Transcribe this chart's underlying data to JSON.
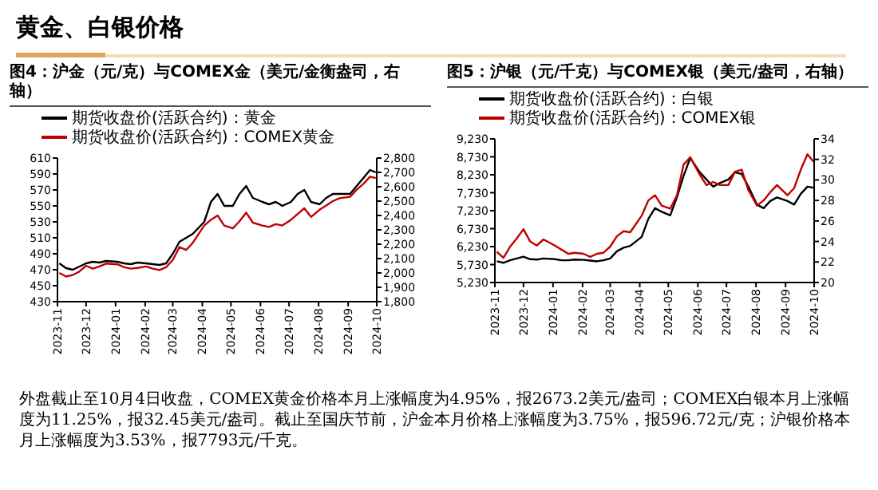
{
  "chart_data": [
    {
      "type": "line",
      "title": "图4：沪金（元/克）与COMEX金（美元/金衡盎司，右轴）",
      "legend": "top",
      "x": [
        "2023-11-03",
        "2023-11-10",
        "2023-11-17",
        "2023-11-24",
        "2023-12-01",
        "2023-12-08",
        "2023-12-15",
        "2023-12-22",
        "2024-01-03",
        "2024-01-10",
        "2024-01-17",
        "2024-01-24",
        "2024-02-02",
        "2024-02-09",
        "2024-02-16",
        "2024-02-23",
        "2024-03-01",
        "2024-03-08",
        "2024-03-15",
        "2024-03-22",
        "2024-04-03",
        "2024-04-10",
        "2024-04-17",
        "2024-04-24",
        "2024-05-03",
        "2024-05-10",
        "2024-05-17",
        "2024-05-24",
        "2024-06-03",
        "2024-06-10",
        "2024-06-17",
        "2024-06-24",
        "2024-07-03",
        "2024-07-10",
        "2024-07-17",
        "2024-07-24",
        "2024-08-02",
        "2024-08-09",
        "2024-08-16",
        "2024-08-23",
        "2024-09-03",
        "2024-09-10",
        "2024-09-17",
        "2024-09-24",
        "2024-09-30"
      ],
      "series": [
        {
          "name": "期货收盘价(活跃合约)：黄金",
          "color": "#000000",
          "values": [
            478,
            472,
            470,
            474,
            478,
            480,
            479,
            481,
            480,
            478,
            477,
            479,
            478,
            477,
            476,
            478,
            490,
            505,
            510,
            515,
            530,
            555,
            565,
            550,
            550,
            565,
            575,
            560,
            555,
            552,
            555,
            550,
            555,
            565,
            570,
            555,
            552,
            560,
            565,
            565,
            565,
            575,
            585,
            595,
            592
          ]
        },
        {
          "name": "期货收盘价(活跃合约)：COMEX黄金",
          "color": "#c00000",
          "axis": "y2",
          "values": [
            2000,
            1975,
            1985,
            2010,
            2050,
            2030,
            2045,
            2065,
            2060,
            2040,
            2030,
            2035,
            2045,
            2030,
            2020,
            2040,
            2090,
            2180,
            2160,
            2210,
            2330,
            2370,
            2400,
            2330,
            2310,
            2360,
            2420,
            2350,
            2330,
            2320,
            2340,
            2330,
            2370,
            2410,
            2450,
            2390,
            2440,
            2470,
            2500,
            2520,
            2530,
            2580,
            2620,
            2670,
            2660
          ]
        }
      ],
      "xlim": [
        "2023-11-01",
        "2024-10-01"
      ],
      "xticks": [
        "2023-11",
        "2023-12",
        "2024-01",
        "2024-02",
        "2024-03",
        "2024-04",
        "2024-05",
        "2024-06",
        "2024-07",
        "2024-08",
        "2024-09",
        "2024-10"
      ],
      "ylim": [
        430,
        610
      ],
      "yticks": [
        430,
        450,
        470,
        490,
        510,
        530,
        550,
        570,
        590,
        610
      ],
      "y2lim": [
        1800,
        2800
      ],
      "y2ticks": [
        {
          "value": 1800,
          "label": "1,800"
        },
        {
          "value": 1900,
          "label": "1,900"
        },
        {
          "value": 2000,
          "label": "2,000"
        },
        {
          "value": 2100,
          "label": "2,100"
        },
        {
          "value": 2200,
          "label": "2,200"
        },
        {
          "value": 2300,
          "label": "2,300"
        },
        {
          "value": 2400,
          "label": "2,400"
        },
        {
          "value": 2500,
          "label": "2,500"
        },
        {
          "value": 2600,
          "label": "2,600"
        },
        {
          "value": 2700,
          "label": "2,700"
        },
        {
          "value": 2800,
          "label": "2,800"
        }
      ]
    },
    {
      "type": "line",
      "title": "图5：沪银（元/千克）与COMEX银（美元/盎司，右轴）",
      "legend": "top",
      "x": [
        "2023-11-03",
        "2023-11-10",
        "2023-11-17",
        "2023-11-24",
        "2023-12-01",
        "2023-12-08",
        "2023-12-15",
        "2023-12-22",
        "2024-01-03",
        "2024-01-10",
        "2024-01-17",
        "2024-01-24",
        "2024-02-02",
        "2024-02-09",
        "2024-02-16",
        "2024-02-23",
        "2024-03-01",
        "2024-03-08",
        "2024-03-15",
        "2024-03-22",
        "2024-04-03",
        "2024-04-10",
        "2024-04-17",
        "2024-04-24",
        "2024-05-03",
        "2024-05-10",
        "2024-05-17",
        "2024-05-24",
        "2024-06-03",
        "2024-06-10",
        "2024-06-17",
        "2024-06-24",
        "2024-07-03",
        "2024-07-10",
        "2024-07-17",
        "2024-07-24",
        "2024-08-02",
        "2024-08-09",
        "2024-08-16",
        "2024-08-23",
        "2024-09-03",
        "2024-09-10",
        "2024-09-17",
        "2024-09-24",
        "2024-09-30"
      ],
      "series": [
        {
          "name": "期货收盘价(活跃合约)：白银",
          "color": "#000000",
          "values": [
            5820,
            5780,
            5850,
            5900,
            5950,
            5880,
            5870,
            5900,
            5880,
            5850,
            5850,
            5870,
            5860,
            5840,
            5820,
            5850,
            5900,
            6100,
            6200,
            6250,
            6500,
            7000,
            7300,
            7200,
            7100,
            7600,
            8200,
            8700,
            8300,
            8100,
            7900,
            8000,
            8100,
            8300,
            8250,
            7900,
            7400,
            7300,
            7500,
            7600,
            7500,
            7400,
            7700,
            7900,
            7870
          ]
        },
        {
          "name": "期货收盘价(活跃合约)：COMEX银",
          "color": "#c00000",
          "axis": "y2",
          "values": [
            23.0,
            22.4,
            23.5,
            24.3,
            25.2,
            24.0,
            23.6,
            24.2,
            23.6,
            23.2,
            22.8,
            22.9,
            22.8,
            22.5,
            22.8,
            22.9,
            23.5,
            24.5,
            25.0,
            24.9,
            26.5,
            28.0,
            28.5,
            27.5,
            27.2,
            28.5,
            31.5,
            32.2,
            30.5,
            29.5,
            29.8,
            29.5,
            29.5,
            30.8,
            31.0,
            29.0,
            27.5,
            28.0,
            28.8,
            29.5,
            28.5,
            29.2,
            31.0,
            32.5,
            31.8
          ]
        }
      ],
      "xlim": [
        "2023-11-01",
        "2024-10-01"
      ],
      "xticks": [
        "2023-11",
        "2023-12",
        "2024-01",
        "2024-02",
        "2024-03",
        "2024-04",
        "2024-05",
        "2024-06",
        "2024-07",
        "2024-08",
        "2024-09",
        "2024-10"
      ],
      "ylim": [
        5230,
        9230
      ],
      "yticks": [
        {
          "value": 5230,
          "label": "5,230"
        },
        {
          "value": 5730,
          "label": "5,730"
        },
        {
          "value": 6230,
          "label": "6,230"
        },
        {
          "value": 6730,
          "label": "6,730"
        },
        {
          "value": 7230,
          "label": "7,230"
        },
        {
          "value": 7730,
          "label": "7,730"
        },
        {
          "value": 8230,
          "label": "8,230"
        },
        {
          "value": 8730,
          "label": "8,730"
        },
        {
          "value": 9230,
          "label": "9,230"
        }
      ],
      "y2lim": [
        20,
        34
      ],
      "y2ticks": [
        20,
        22,
        24,
        26,
        28,
        30,
        32,
        34
      ]
    },
    {
      "type": "other",
      "title": "黄金、白银价格",
      "annotations": [
        "外盘截止至10月4日收盘，COMEX黄金价格本月上涨幅度为4.95%，报2673.2美元/盎司；COMEX白银本月上涨幅度为11.25%，报32.45美元/盎司。截止至国庆节前，沪金本月价格上涨幅度为3.75%，报596.72元/克；沪银价格本月上涨幅度为3.53%，报7793元/千克。"
      ]
    }
  ]
}
